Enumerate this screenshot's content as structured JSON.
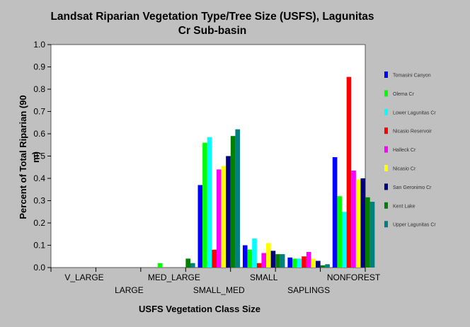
{
  "chart_data": {
    "type": "bar",
    "title": "Landsat Riparian Vegetation Type/Tree Size (USFS), Lagunitas Cr Sub-basin",
    "title_lines": [
      "Landsat Riparian Vegetation Type/Tree Size (USFS), Lagunitas",
      "Cr Sub-basin"
    ],
    "xlabel": "USFS Vegetation Class Size",
    "ylabel": "Percent of Total Riparian (90 m)",
    "ylabel_lines": [
      "Percent of Total Riparian (90",
      "m)"
    ],
    "ylim": [
      0,
      1.0
    ],
    "yticks": [
      "0.0",
      "0.1",
      "0.2",
      "0.3",
      "0.4",
      "0.5",
      "0.6",
      "0.7",
      "0.8",
      "0.9",
      "1.0"
    ],
    "categories": [
      "V_LARGE",
      "LARGE",
      "MED_LARGE",
      "SMALL_MED",
      "SMALL",
      "SAPLINGS",
      "NONFOREST"
    ],
    "legend_position": "right",
    "grid": false,
    "series": [
      {
        "name": "Tomasini Canyon",
        "color": "#0000ff",
        "values": [
          0,
          0,
          0,
          0.37,
          0.1,
          0.045,
          0.495
        ]
      },
      {
        "name": "Olema Cr",
        "color": "#00ff00",
        "values": [
          0,
          0,
          0.02,
          0.56,
          0.08,
          0.04,
          0.32
        ]
      },
      {
        "name": "Lower Lagunitas Cr",
        "color": "#00ffff",
        "values": [
          0,
          0,
          0,
          0.585,
          0.13,
          0.04,
          0.25
        ]
      },
      {
        "name": "Nicasio Reservoir",
        "color": "#ff0000",
        "values": [
          0,
          0,
          0,
          0.08,
          0.02,
          0.05,
          0.855
        ]
      },
      {
        "name": "Halleck Cr",
        "color": "#ff00ff",
        "values": [
          0,
          0,
          0,
          0.44,
          0.065,
          0.07,
          0.435
        ]
      },
      {
        "name": "Nicasio Cr",
        "color": "#ffff00",
        "values": [
          0,
          0,
          0,
          0.455,
          0.11,
          0.04,
          0.395
        ]
      },
      {
        "name": "San Geronimo Cr",
        "color": "#000080",
        "values": [
          0,
          0,
          0,
          0.5,
          0.075,
          0.03,
          0.4
        ]
      },
      {
        "name": "Kent Lake",
        "color": "#008000",
        "values": [
          0,
          0,
          0.04,
          0.59,
          0.06,
          0.01,
          0.315
        ]
      },
      {
        "name": "Upper Lagunitas Cr",
        "color": "#008080",
        "values": [
          0,
          0,
          0.02,
          0.62,
          0.06,
          0.015,
          0.295
        ]
      }
    ]
  }
}
